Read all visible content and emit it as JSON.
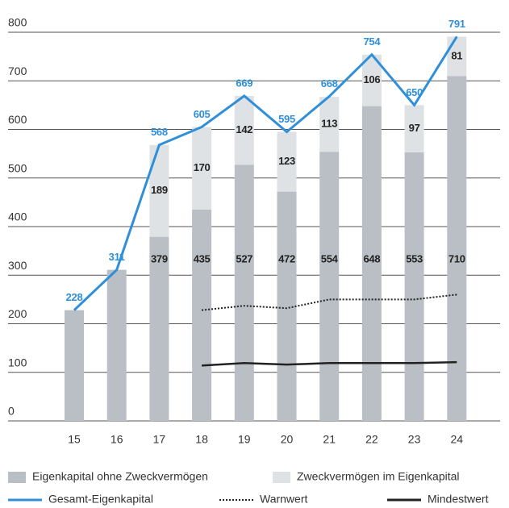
{
  "chart_data": {
    "type": "bar",
    "categories": [
      "15",
      "16",
      "17",
      "18",
      "19",
      "20",
      "21",
      "22",
      "23",
      "24"
    ],
    "ylim": [
      0,
      800
    ],
    "yticks": [
      0,
      100,
      200,
      300,
      400,
      500,
      600,
      700,
      800
    ],
    "grid": true,
    "series": [
      {
        "name": "Eigenkapital ohne Zweckvermögen",
        "type": "bar",
        "color": "#b9bfc4",
        "values": [
          228,
          311,
          379,
          435,
          527,
          472,
          554,
          648,
          553,
          710
        ]
      },
      {
        "name": "Zweckvermögen im Eigenkapital",
        "type": "bar",
        "color": "#dfe2e4",
        "values": [
          null,
          null,
          189,
          170,
          142,
          123,
          113,
          106,
          97,
          81
        ]
      },
      {
        "name": "Gesamt-Eigenkapital",
        "type": "line",
        "color": "#2f8fd8",
        "values": [
          228,
          311,
          568,
          605,
          669,
          595,
          668,
          754,
          650,
          791
        ]
      },
      {
        "name": "Warnwert",
        "type": "line",
        "style": "dotted",
        "color": "#222222",
        "values": [
          null,
          null,
          null,
          228,
          237,
          232,
          250,
          250,
          250,
          260
        ]
      },
      {
        "name": "Mindestwert",
        "type": "line",
        "color": "#222222",
        "values": [
          null,
          null,
          null,
          114,
          119,
          116,
          119,
          119,
          119,
          121
        ]
      }
    ]
  }
}
